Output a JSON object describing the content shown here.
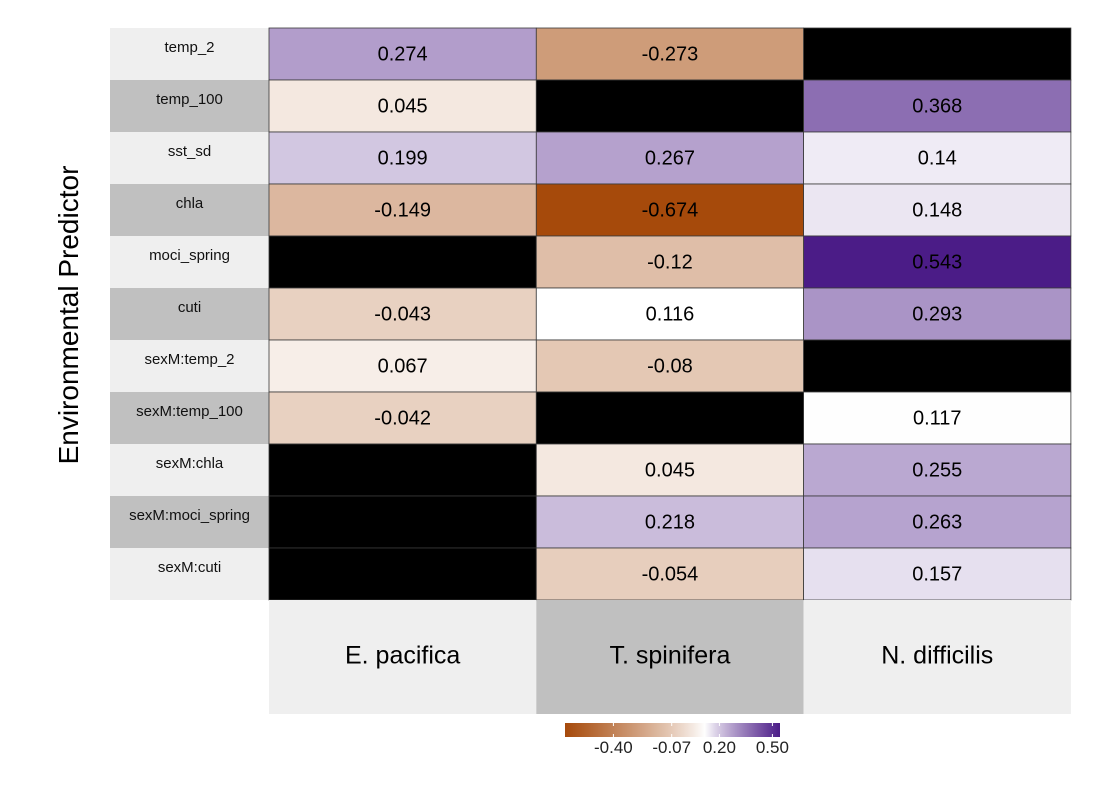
{
  "chart_data": {
    "type": "heatmap",
    "ylabel": "Environmental Predictor",
    "xlabel": "",
    "columns": [
      "E. pacifica",
      "T. spinifera",
      "N. difficilis"
    ],
    "rows": [
      "temp_2",
      "temp_100",
      "sst_sd",
      "chla",
      "moci_spring",
      "cuti",
      "sexM:temp_2",
      "sexM:temp_100",
      "sexM:chla",
      "sexM:moci_spring",
      "sexM:cuti"
    ],
    "values": [
      [
        0.274,
        -0.273,
        null
      ],
      [
        0.045,
        null,
        0.368
      ],
      [
        0.199,
        0.267,
        0.14
      ],
      [
        -0.149,
        -0.674,
        0.148
      ],
      [
        null,
        -0.12,
        0.543
      ],
      [
        -0.043,
        0.116,
        0.293
      ],
      [
        0.067,
        -0.08,
        null
      ],
      [
        -0.042,
        null,
        0.117
      ],
      [
        null,
        0.045,
        0.255
      ],
      [
        null,
        0.218,
        0.263
      ],
      [
        null,
        -0.054,
        0.157
      ]
    ],
    "missing_color": "#000000",
    "color_scale": {
      "low": "#a64a0b",
      "mid": "#ffffff",
      "high": "#4b1c87",
      "domain": [
        -0.674,
        0.543
      ]
    },
    "legend": {
      "position": "bottom",
      "tick_labels": [
        "-0.40",
        "-0.07",
        "0.20",
        "0.50"
      ],
      "tick_values": [
        -0.4,
        -0.07,
        0.2,
        0.5
      ]
    }
  }
}
